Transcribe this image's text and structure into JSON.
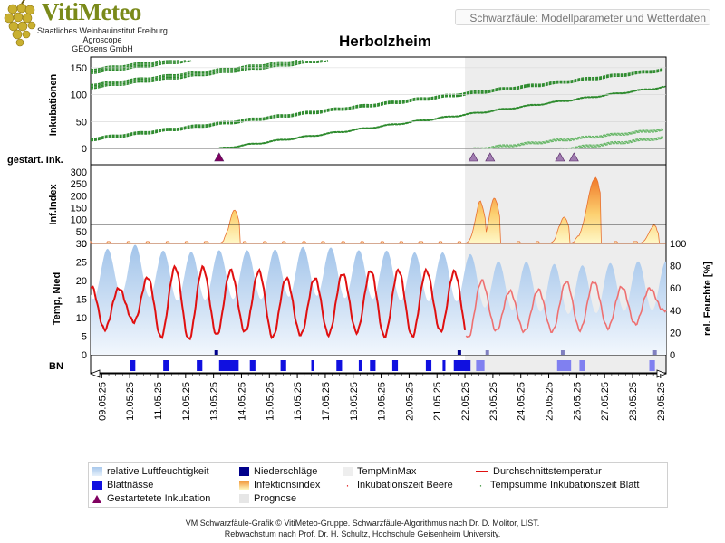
{
  "brand": {
    "name": "VitiMeteo",
    "org1": "Staatliches Weinbauinstitut Freiburg",
    "org2": "Agroscope",
    "org3": "GEOsens GmbH"
  },
  "header": {
    "label": "Schwarzfäule: Modellparameter und Wetterdaten"
  },
  "chart_data": {
    "type": "line",
    "title": "Herbolzheim",
    "x_dates": [
      "09.05.25",
      "10.05.25",
      "11.05.25",
      "12.05.25",
      "13.05.25",
      "14.05.25",
      "15.05.25",
      "16.05.25",
      "17.05.25",
      "18.05.25",
      "19.05.25",
      "20.05.25",
      "21.05.25",
      "22.05.25",
      "23.05.25",
      "24.05.25",
      "25.05.25",
      "26.05.25",
      "27.05.25",
      "28.05.25",
      "29.05.25"
    ],
    "forecast_from": "22.05.25",
    "panels": {
      "inkubationen": {
        "ylabel": "Inkubationen",
        "ylim": [
          0,
          170
        ],
        "ticks": [
          0,
          50,
          100,
          150
        ]
      },
      "gestartet": {
        "ylabel": "gestart. Ink.",
        "events_day": [
          13.2,
          22.3,
          22.9,
          25.4,
          25.9
        ]
      },
      "infindex": {
        "ylabel": "Inf.Index",
        "ylim": [
          0,
          330
        ],
        "ticks": [
          0,
          50,
          100,
          150,
          200,
          250,
          300
        ],
        "threshold": 80,
        "peaks": [
          {
            "day": 13.8,
            "value": 140
          },
          {
            "day": 22.6,
            "value": 170
          },
          {
            "day": 23.1,
            "value": 190
          },
          {
            "day": 25.6,
            "value": 110
          },
          {
            "day": 26.7,
            "value": 270
          },
          {
            "day": 28.8,
            "value": 70
          }
        ]
      },
      "temp": {
        "ylabel": "Temp, Nied",
        "ylim": [
          0,
          30
        ],
        "ticks": [
          0,
          5,
          10,
          15,
          20,
          25,
          30
        ],
        "ylabel_right": "rel. Feuchte [%]",
        "ylim_right": [
          0,
          100
        ],
        "ticks_right": [
          0,
          20,
          40,
          60,
          80,
          100
        ],
        "daily_mean": [
          12.5,
          13.5,
          13.8,
          14.0,
          14.2,
          14.4,
          13.6,
          12.4,
          13.3,
          14.2,
          13.9,
          13.7,
          14.6,
          13.3,
          12.5,
          11.3,
          12.2,
          13.6,
          13.1,
          12.8,
          14.9
        ],
        "daily_amplitude": [
          6,
          4,
          9,
          10,
          9,
          8,
          9,
          7,
          8,
          8,
          9,
          9,
          8,
          9,
          6,
          5,
          6,
          7,
          6,
          5,
          3
        ],
        "humidity_mean": [
          72,
          78,
          72,
          70,
          72,
          72,
          72,
          75,
          75,
          72,
          72,
          70,
          70,
          70,
          62,
          62,
          60,
          58,
          60,
          62,
          62
        ],
        "rain_days": [
          13.1,
          21.8,
          22.8,
          25.5,
          28.8
        ]
      },
      "bn": {
        "ylabel": "BN",
        "wet_intervals": [
          [
            10.0,
            10.2
          ],
          [
            11.2,
            11.4
          ],
          [
            12.4,
            12.6
          ],
          [
            13.2,
            13.9
          ],
          [
            14.3,
            14.5
          ],
          [
            15.4,
            15.6
          ],
          [
            16.5,
            16.6
          ],
          [
            17.4,
            17.6
          ],
          [
            18.2,
            18.3
          ],
          [
            18.6,
            18.8
          ],
          [
            19.4,
            19.6
          ],
          [
            20.6,
            20.8
          ],
          [
            21.2,
            21.3
          ],
          [
            21.6,
            22.2
          ],
          [
            22.4,
            22.7
          ],
          [
            25.3,
            25.8
          ],
          [
            26.1,
            26.3
          ],
          [
            28.6,
            28.8
          ]
        ]
      }
    }
  },
  "legend": {
    "items": [
      {
        "label": "relative Luftfeuchtigkeit",
        "swatch": "humidity"
      },
      {
        "label": "Niederschläge",
        "swatch": "rain"
      },
      {
        "label": "TempMinMax",
        "swatch": "tempminmax"
      },
      {
        "label": "Durchschnittstemperatur",
        "swatch": "meantemp"
      },
      {
        "label": "Blattnässe",
        "swatch": "leafwet"
      },
      {
        "label": "Infektionsindex",
        "swatch": "infindex"
      },
      {
        "label": "Inkubationszeit Beere",
        "swatch": "beere"
      },
      {
        "label": "Tempsumme Inkubationszeit Blatt",
        "swatch": "blatt"
      },
      {
        "label": "Gestartetete Inkubation",
        "swatch": "triangle"
      },
      {
        "label": "Prognose",
        "swatch": "prognose"
      }
    ]
  },
  "footer": {
    "line1": "VM Schwarzfäule-Grafik © VitiMeteo-Gruppe. Schwarzfäule-Algorithmus nach Dr. D. Molitor, LIST.",
    "line2": "Rebwachstum nach Prof. Dr. H. Schultz, Hochschule Geisenheim University."
  },
  "colors": {
    "green": "#2e8b2e",
    "red": "#e01010",
    "rain": "#00008b",
    "leaf": "#1010e0",
    "forecast": "#eeeeee",
    "triangle": "#800060"
  }
}
